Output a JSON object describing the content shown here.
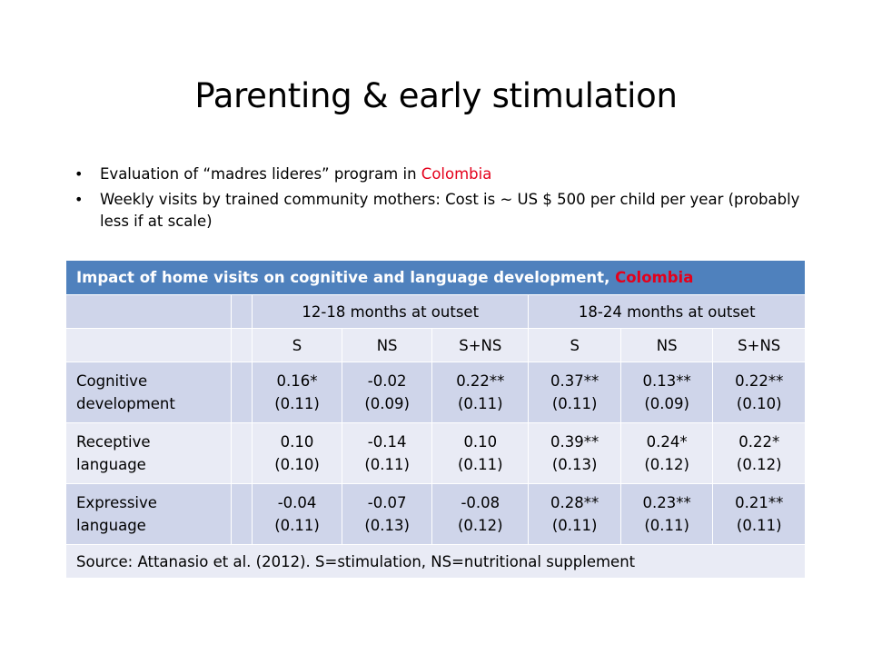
{
  "title": "Parenting & early stimulation",
  "bullets": [
    {
      "pre": "Evaluation of “madres lideres” program in ",
      "highlight": "Colombia",
      "post": ""
    },
    {
      "pre": "Weekly visits by trained community mothers: Cost is ~ US $ 500 per child per year (probably less if at scale)",
      "highlight": "",
      "post": ""
    }
  ],
  "table": {
    "caption": "Impact of home visits on cognitive and language development, ",
    "caption_highlight": "Colombia",
    "groups": [
      "12-18 months at outset",
      "18-24 months at outset"
    ],
    "subheaders": [
      "S",
      "NS",
      "S+NS",
      "S",
      "NS",
      "S+NS"
    ],
    "rows": [
      {
        "label_line1": "Cognitive",
        "label_line2": "development",
        "cells": [
          [
            "0.16*",
            "(0.11)"
          ],
          [
            "-0.02",
            "(0.09)"
          ],
          [
            "0.22**",
            "(0.11)"
          ],
          [
            "0.37**",
            "(0.11)"
          ],
          [
            "0.13**",
            "(0.09)"
          ],
          [
            "0.22**",
            "(0.10)"
          ]
        ]
      },
      {
        "label_line1": "Receptive",
        "label_line2": "language",
        "cells": [
          [
            "0.10",
            "(0.10)"
          ],
          [
            "-0.14",
            "(0.11)"
          ],
          [
            "0.10",
            "(0.11)"
          ],
          [
            "0.39**",
            "(0.13)"
          ],
          [
            "0.24*",
            "(0.12)"
          ],
          [
            "0.22*",
            "(0.12)"
          ]
        ]
      },
      {
        "label_line1": "Expressive",
        "label_line2": "language",
        "cells": [
          [
            "-0.04",
            "(0.11)"
          ],
          [
            "-0.07",
            "(0.13)"
          ],
          [
            "-0.08",
            "(0.12)"
          ],
          [
            "0.28**",
            "(0.11)"
          ],
          [
            "0.23**",
            "(0.11)"
          ],
          [
            "0.21**",
            "(0.11)"
          ]
        ]
      }
    ],
    "source": "Source: Attanasio et al. (2012). S=stimulation, NS=nutritional supplement"
  },
  "colors": {
    "header_bg": "#4f81bd",
    "accent_red": "#e4001b",
    "row_dark": "#cfd5ea",
    "row_light": "#e9ebf5"
  }
}
